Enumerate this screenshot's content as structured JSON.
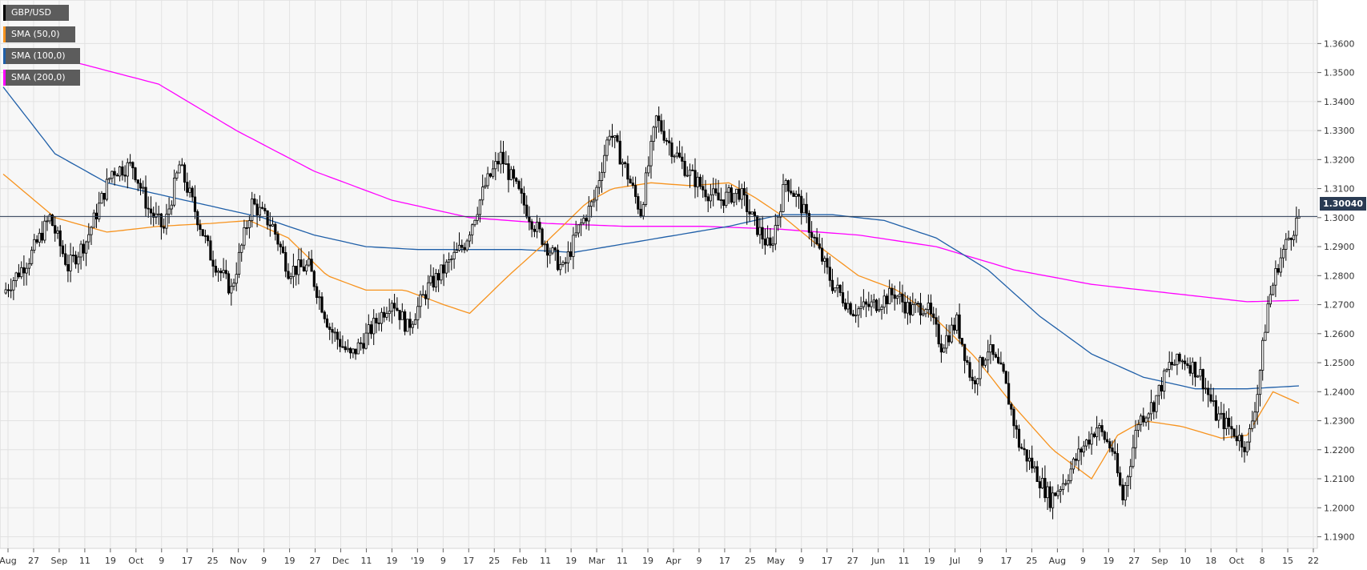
{
  "colors": {
    "plot_bg": "#f7f7f7",
    "grid": "#e2e2e2",
    "candle": "#000000",
    "sma50": "#f7931e",
    "sma100": "#1f5fa8",
    "sma200": "#ff00ff",
    "last_price_line": "#2a3b53"
  },
  "legend": [
    {
      "label": "GBP/USD",
      "color": "#000000"
    },
    {
      "label": "SMA (50,0)",
      "color": "#f7931e"
    },
    {
      "label": "SMA (100,0)",
      "color": "#1f5fa8"
    },
    {
      "label": "SMA (200,0)",
      "color": "#ff00ff"
    }
  ],
  "last_price_label": "1.30040",
  "chart_data": {
    "type": "candlestick",
    "title": "",
    "xlabel": "",
    "ylabel": "",
    "ylim": [
      1.186,
      1.375
    ],
    "grid": true,
    "legend_position": "top-left",
    "yticks": [
      "1.1900",
      "1.2000",
      "1.2100",
      "1.2200",
      "1.2300",
      "1.2400",
      "1.2500",
      "1.2600",
      "1.2700",
      "1.2800",
      "1.2900",
      "1.3000",
      "1.3100",
      "1.3200",
      "1.3300",
      "1.3400",
      "1.3500",
      "1.3600"
    ],
    "xticks": [
      "Aug",
      "27",
      "Sep",
      "11",
      "19",
      "Oct",
      "9",
      "17",
      "25",
      "Nov",
      "9",
      "19",
      "27",
      "Dec",
      "11",
      "19",
      "'19",
      "9",
      "17",
      "25",
      "Feb",
      "11",
      "19",
      "Mar",
      "11",
      "19",
      "Apr",
      "9",
      "17",
      "25",
      "May",
      "9",
      "17",
      "27",
      "Jun",
      "11",
      "19",
      "Jul",
      "9",
      "17",
      "25",
      "Aug",
      "9",
      "19",
      "27",
      "Sep",
      "10",
      "18",
      "Oct",
      "8",
      "15",
      "22"
    ],
    "last_price": 1.3004,
    "price_anchors": [
      [
        0,
        1.274
      ],
      [
        10,
        1.286
      ],
      [
        18,
        1.3
      ],
      [
        25,
        1.283
      ],
      [
        32,
        1.292
      ],
      [
        42,
        1.316
      ],
      [
        50,
        1.318
      ],
      [
        56,
        1.303
      ],
      [
        62,
        1.296
      ],
      [
        68,
        1.318
      ],
      [
        75,
        1.3
      ],
      [
        80,
        1.287
      ],
      [
        88,
        1.275
      ],
      [
        96,
        1.305
      ],
      [
        104,
        1.297
      ],
      [
        110,
        1.282
      ],
      [
        118,
        1.283
      ],
      [
        126,
        1.262
      ],
      [
        134,
        1.252
      ],
      [
        140,
        1.259
      ],
      [
        150,
        1.272
      ],
      [
        156,
        1.262
      ],
      [
        164,
        1.276
      ],
      [
        170,
        1.282
      ],
      [
        178,
        1.291
      ],
      [
        186,
        1.311
      ],
      [
        192,
        1.321
      ],
      [
        198,
        1.31
      ],
      [
        204,
        1.299
      ],
      [
        210,
        1.29
      ],
      [
        216,
        1.282
      ],
      [
        222,
        1.296
      ],
      [
        228,
        1.306
      ],
      [
        234,
        1.33
      ],
      [
        240,
        1.317
      ],
      [
        246,
        1.302
      ],
      [
        252,
        1.334
      ],
      [
        258,
        1.324
      ],
      [
        264,
        1.316
      ],
      [
        270,
        1.31
      ],
      [
        276,
        1.306
      ],
      [
        284,
        1.309
      ],
      [
        290,
        1.298
      ],
      [
        296,
        1.289
      ],
      [
        302,
        1.313
      ],
      [
        308,
        1.304
      ],
      [
        314,
        1.29
      ],
      [
        320,
        1.277
      ],
      [
        328,
        1.268
      ],
      [
        336,
        1.27
      ],
      [
        344,
        1.274
      ],
      [
        350,
        1.268
      ],
      [
        356,
        1.27
      ],
      [
        362,
        1.256
      ],
      [
        368,
        1.264
      ],
      [
        374,
        1.243
      ],
      [
        380,
        1.255
      ],
      [
        386,
        1.245
      ],
      [
        392,
        1.222
      ],
      [
        398,
        1.213
      ],
      [
        404,
        1.203
      ],
      [
        410,
        1.21
      ],
      [
        416,
        1.22
      ],
      [
        422,
        1.228
      ],
      [
        428,
        1.22
      ],
      [
        432,
        1.203
      ],
      [
        438,
        1.23
      ],
      [
        444,
        1.236
      ],
      [
        450,
        1.249
      ],
      [
        456,
        1.251
      ],
      [
        462,
        1.246
      ],
      [
        468,
        1.232
      ],
      [
        474,
        1.227
      ],
      [
        480,
        1.221
      ],
      [
        484,
        1.24
      ],
      [
        488,
        1.27
      ],
      [
        492,
        1.284
      ],
      [
        496,
        1.293
      ],
      [
        500,
        1.3004
      ]
    ],
    "sma50_anchors": [
      [
        0,
        1.315
      ],
      [
        20,
        1.3
      ],
      [
        40,
        1.295
      ],
      [
        60,
        1.297
      ],
      [
        80,
        1.298
      ],
      [
        95,
        1.299
      ],
      [
        110,
        1.293
      ],
      [
        125,
        1.28
      ],
      [
        140,
        1.275
      ],
      [
        155,
        1.275
      ],
      [
        170,
        1.27
      ],
      [
        180,
        1.267
      ],
      [
        195,
        1.28
      ],
      [
        210,
        1.292
      ],
      [
        225,
        1.305
      ],
      [
        235,
        1.31
      ],
      [
        250,
        1.312
      ],
      [
        265,
        1.311
      ],
      [
        280,
        1.312
      ],
      [
        290,
        1.307
      ],
      [
        300,
        1.301
      ],
      [
        315,
        1.29
      ],
      [
        330,
        1.28
      ],
      [
        345,
        1.275
      ],
      [
        360,
        1.265
      ],
      [
        375,
        1.252
      ],
      [
        390,
        1.235
      ],
      [
        405,
        1.22
      ],
      [
        420,
        1.21
      ],
      [
        430,
        1.225
      ],
      [
        440,
        1.23
      ],
      [
        455,
        1.228
      ],
      [
        470,
        1.224
      ],
      [
        480,
        1.225
      ],
      [
        490,
        1.24
      ],
      [
        500,
        1.236
      ]
    ],
    "sma100_anchors": [
      [
        0,
        1.345
      ],
      [
        20,
        1.322
      ],
      [
        40,
        1.312
      ],
      [
        60,
        1.308
      ],
      [
        80,
        1.304
      ],
      [
        100,
        1.3
      ],
      [
        120,
        1.294
      ],
      [
        140,
        1.29
      ],
      [
        160,
        1.289
      ],
      [
        180,
        1.289
      ],
      [
        200,
        1.289
      ],
      [
        220,
        1.288
      ],
      [
        240,
        1.291
      ],
      [
        260,
        1.294
      ],
      [
        280,
        1.297
      ],
      [
        300,
        1.301
      ],
      [
        320,
        1.301
      ],
      [
        340,
        1.299
      ],
      [
        360,
        1.293
      ],
      [
        380,
        1.282
      ],
      [
        400,
        1.266
      ],
      [
        420,
        1.253
      ],
      [
        440,
        1.245
      ],
      [
        460,
        1.241
      ],
      [
        480,
        1.241
      ],
      [
        500,
        1.242
      ]
    ],
    "sma200_anchors": [
      [
        0,
        1.358
      ],
      [
        30,
        1.353
      ],
      [
        60,
        1.346
      ],
      [
        90,
        1.33
      ],
      [
        120,
        1.316
      ],
      [
        150,
        1.306
      ],
      [
        180,
        1.3
      ],
      [
        210,
        1.298
      ],
      [
        240,
        1.297
      ],
      [
        270,
        1.297
      ],
      [
        300,
        1.296
      ],
      [
        330,
        1.294
      ],
      [
        360,
        1.29
      ],
      [
        390,
        1.282
      ],
      [
        420,
        1.277
      ],
      [
        450,
        1.274
      ],
      [
        480,
        1.271
      ],
      [
        500,
        1.2715
      ]
    ]
  }
}
